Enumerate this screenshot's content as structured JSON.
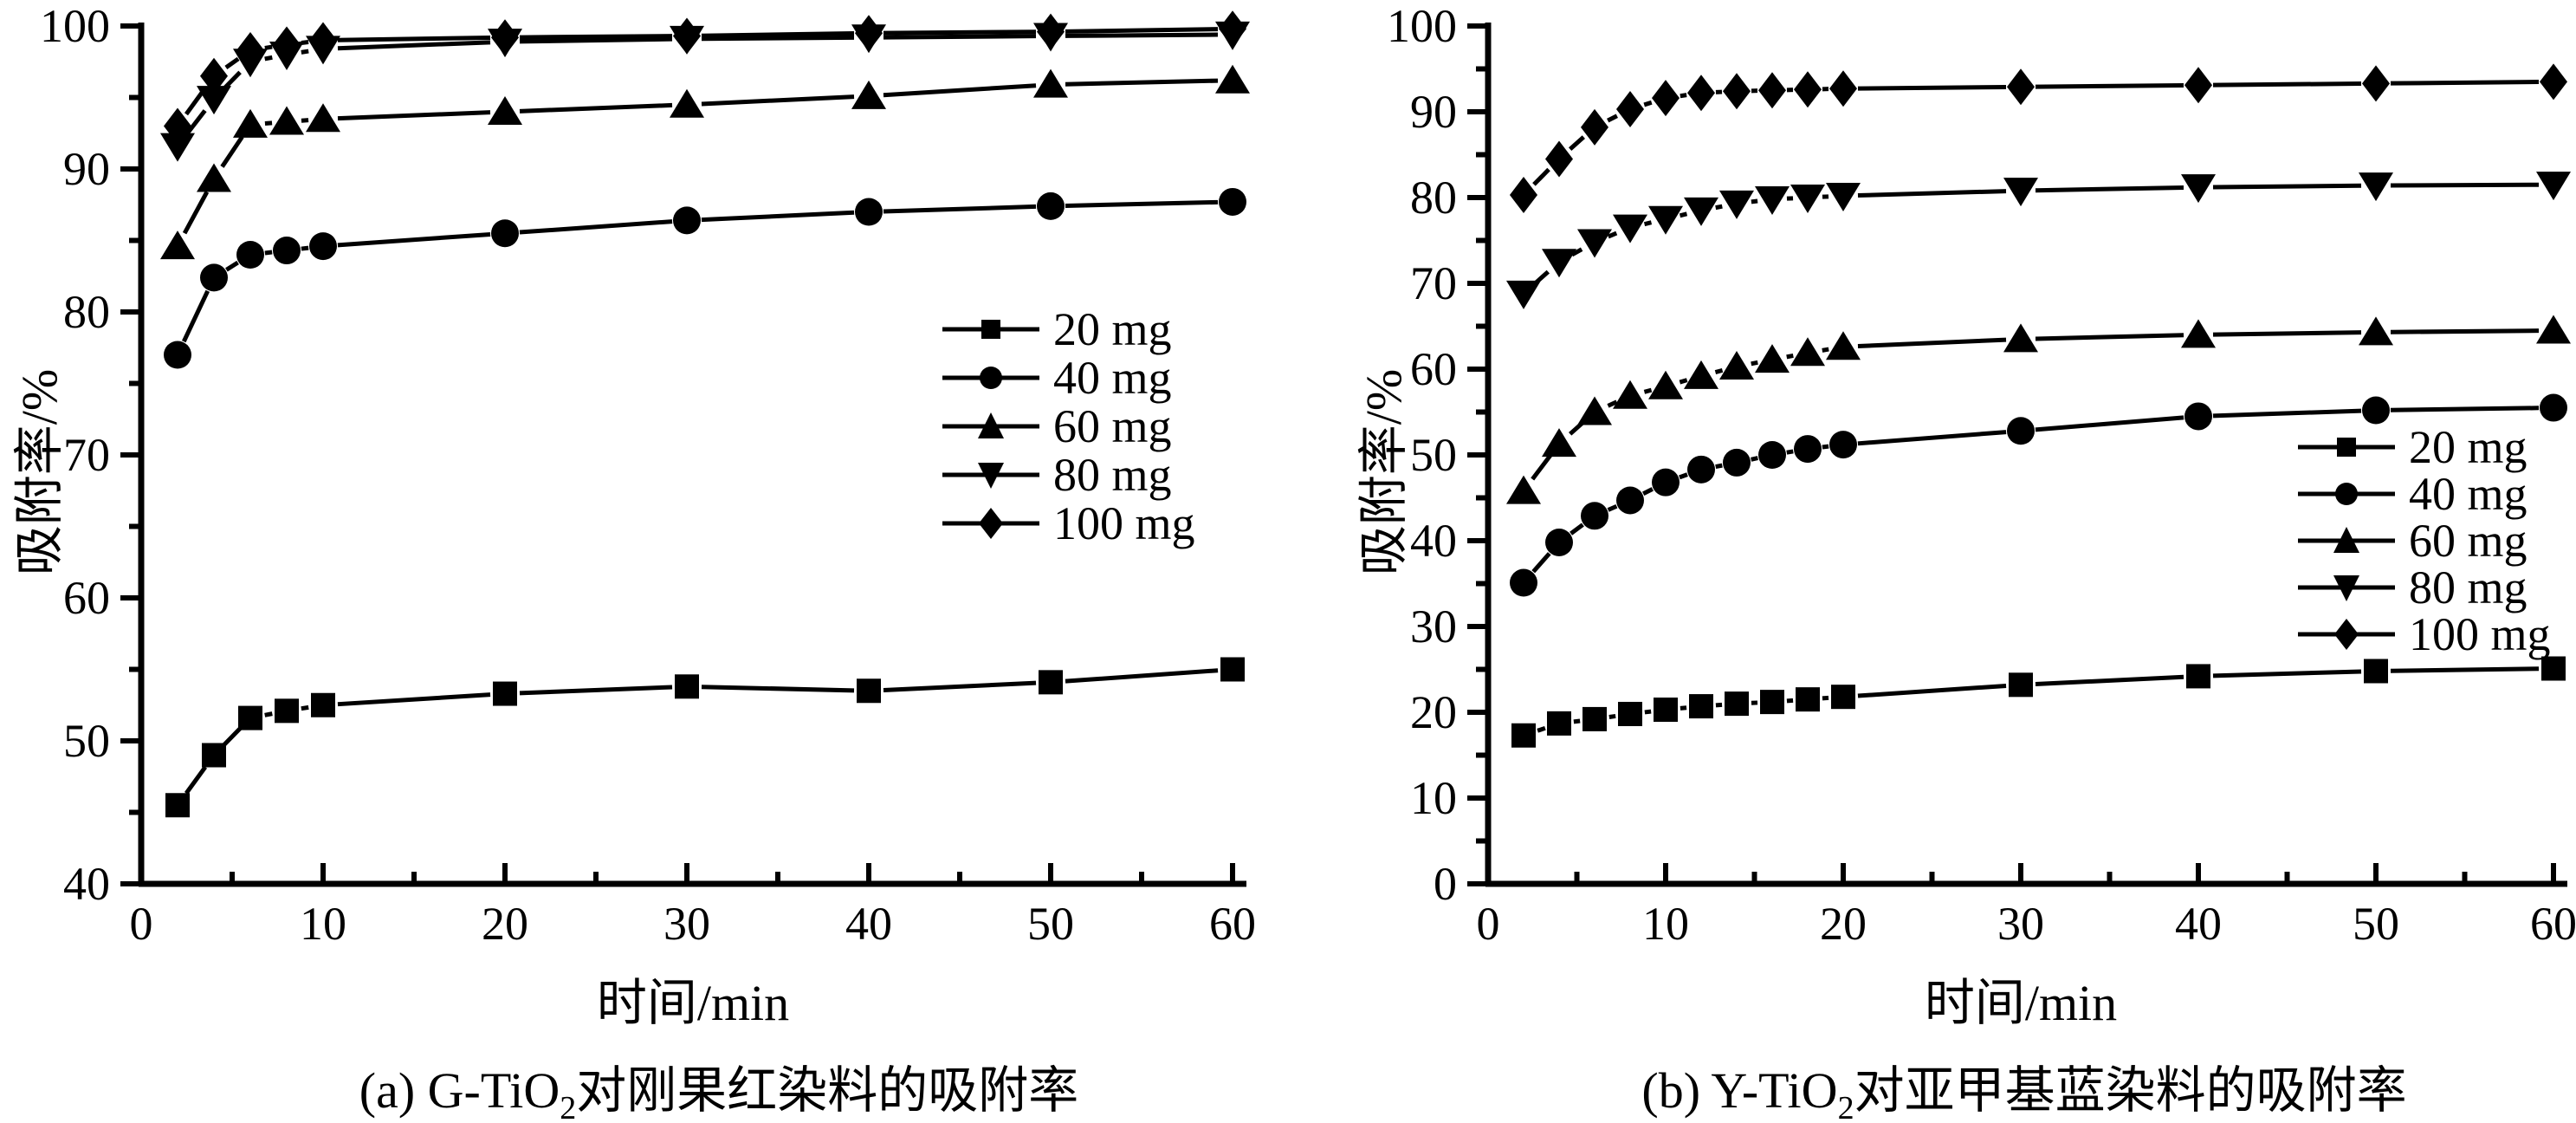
{
  "page": {
    "background": "#ffffff",
    "ink": "#000000"
  },
  "chart_data": [
    {
      "id": "a",
      "type": "line",
      "full_caption": "(a) G-TiO₂对刚果红染料的吸附率",
      "caption_prefix": "(a) G-TiO",
      "caption_sub": "2",
      "caption_suffix": "对刚果红染料的吸附率",
      "xlabel": "时间/min",
      "ylabel": "吸附率/%",
      "xlim": [
        0,
        60
      ],
      "ylim": [
        40,
        100
      ],
      "x_major_ticks": [
        0,
        10,
        20,
        30,
        40,
        50,
        60
      ],
      "x_minor_ticks": [
        5,
        15,
        25,
        35,
        45,
        55
      ],
      "y_major_ticks": [
        40,
        50,
        60,
        70,
        80,
        90,
        100
      ],
      "y_minor_ticks": [
        45,
        55,
        65,
        75,
        85,
        95
      ],
      "grid": false,
      "legend_position": "middle-right",
      "x": [
        2,
        4,
        6,
        8,
        10,
        20,
        30,
        40,
        50,
        60
      ],
      "series": [
        {
          "name": "20 mg",
          "marker": "square",
          "values": [
            45.5,
            49.0,
            51.6,
            52.1,
            52.5,
            53.3,
            53.8,
            53.5,
            54.1,
            55.0
          ]
        },
        {
          "name": "40 mg",
          "marker": "circle",
          "values": [
            77.0,
            82.4,
            84.0,
            84.3,
            84.6,
            85.5,
            86.4,
            87.0,
            87.4,
            87.7
          ]
        },
        {
          "name": "60 mg",
          "marker": "triangle-up",
          "values": [
            84.6,
            89.3,
            93.1,
            93.3,
            93.5,
            94.0,
            94.5,
            95.1,
            95.9,
            96.2
          ]
        },
        {
          "name": "80 mg",
          "marker": "triangle-down",
          "values": [
            91.6,
            94.9,
            97.5,
            98.0,
            98.4,
            98.9,
            99.1,
            99.2,
            99.3,
            99.4
          ]
        },
        {
          "name": "100 mg",
          "marker": "diamond",
          "values": [
            93.0,
            96.5,
            98.3,
            98.7,
            99.0,
            99.2,
            99.3,
            99.5,
            99.6,
            99.8
          ]
        }
      ]
    },
    {
      "id": "b",
      "type": "line",
      "full_caption": "(b) Y-TiO₂对亚甲基蓝染料的吸附率",
      "caption_prefix": "(b) Y-TiO",
      "caption_sub": "2",
      "caption_suffix": "对亚甲基蓝染料的吸附率",
      "xlabel": "时间/min",
      "ylabel": "吸附率/%",
      "xlim": [
        0,
        60
      ],
      "ylim": [
        0,
        100
      ],
      "x_major_ticks": [
        0,
        10,
        20,
        30,
        40,
        50,
        60
      ],
      "x_minor_ticks": [
        5,
        15,
        25,
        35,
        45,
        55
      ],
      "y_major_ticks": [
        0,
        10,
        20,
        30,
        40,
        50,
        60,
        70,
        80,
        90,
        100
      ],
      "y_minor_ticks": [
        5,
        15,
        25,
        35,
        45,
        55,
        65,
        75,
        85,
        95
      ],
      "grid": false,
      "legend_position": "middle-right",
      "x": [
        2,
        4,
        6,
        8,
        10,
        12,
        14,
        16,
        18,
        20,
        30,
        40,
        50,
        60
      ],
      "series": [
        {
          "name": "20 mg",
          "marker": "square",
          "values": [
            17.3,
            18.7,
            19.2,
            19.8,
            20.3,
            20.7,
            21.0,
            21.2,
            21.5,
            21.8,
            23.2,
            24.2,
            24.8,
            25.1
          ]
        },
        {
          "name": "40 mg",
          "marker": "circle",
          "values": [
            35.1,
            39.8,
            42.9,
            44.7,
            46.8,
            48.3,
            49.1,
            50.0,
            50.7,
            51.2,
            52.8,
            54.5,
            55.2,
            55.5
          ]
        },
        {
          "name": "60 mg",
          "marker": "triangle-up",
          "values": [
            45.8,
            51.3,
            55.0,
            56.9,
            58.0,
            59.2,
            60.3,
            61.1,
            61.9,
            62.6,
            63.5,
            64.0,
            64.3,
            64.5
          ]
        },
        {
          "name": "80 mg",
          "marker": "triangle-down",
          "values": [
            68.8,
            72.5,
            74.8,
            76.5,
            77.5,
            78.5,
            79.3,
            79.8,
            80.0,
            80.2,
            80.8,
            81.2,
            81.4,
            81.5
          ]
        },
        {
          "name": "100 mg",
          "marker": "diamond",
          "values": [
            80.3,
            84.5,
            88.2,
            90.3,
            91.6,
            92.2,
            92.4,
            92.5,
            92.6,
            92.7,
            92.9,
            93.1,
            93.3,
            93.5
          ]
        }
      ]
    }
  ]
}
